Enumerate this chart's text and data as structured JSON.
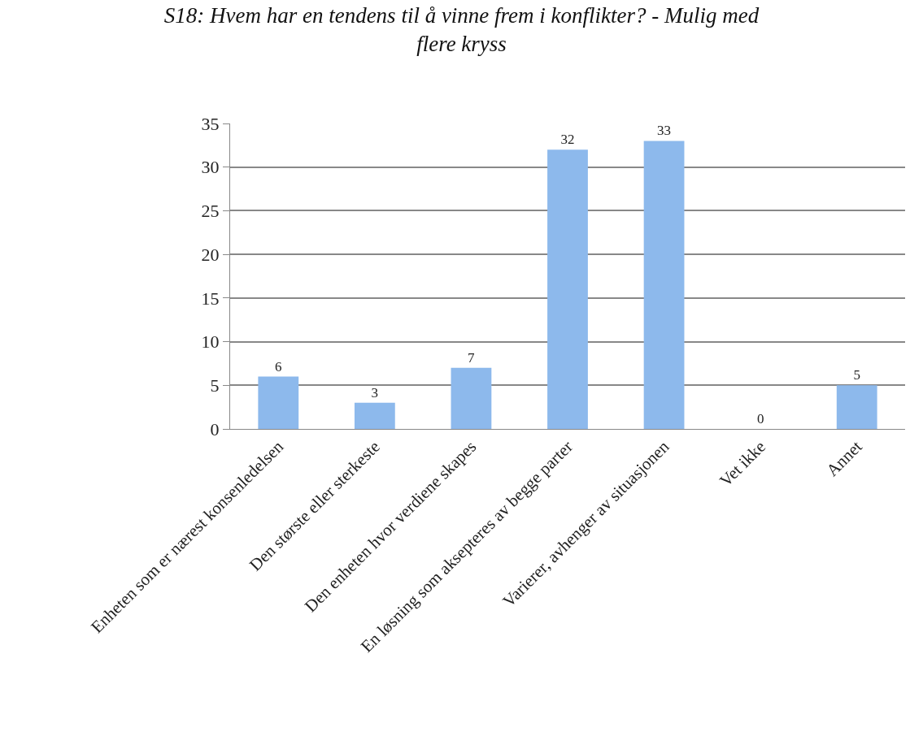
{
  "chart_data": {
    "type": "bar",
    "title": "S18: Hvem har en tendens til å vinne frem i konflikter? - Mulig med flere kryss",
    "categories": [
      "Enheten som er nærest konsenledelsen",
      "Den største eller sterkeste",
      "Den enheten hvor verdiene skapes",
      "En løsning som aksepteres av begge parter",
      "Varierer, avhenger av situasjonen",
      "Vet ikke",
      "Annet"
    ],
    "values": [
      6,
      3,
      7,
      32,
      33,
      0,
      5
    ],
    "color": "#8db9ec",
    "ylim": [
      0,
      35
    ],
    "yticks": [
      0,
      5,
      10,
      15,
      20,
      25,
      30,
      35
    ],
    "grid": "y",
    "data_labels": true,
    "legend": false
  }
}
